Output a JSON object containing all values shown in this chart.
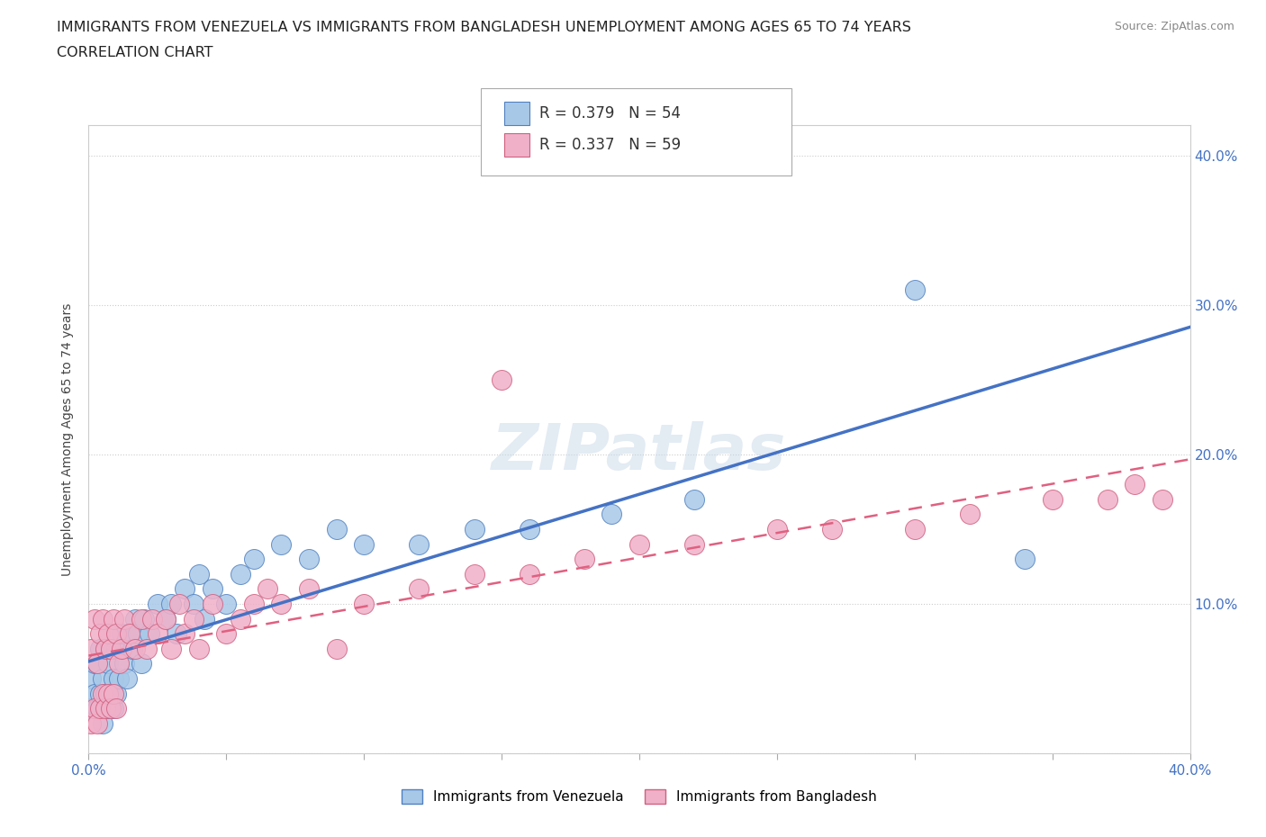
{
  "title_line1": "IMMIGRANTS FROM VENEZUELA VS IMMIGRANTS FROM BANGLADESH UNEMPLOYMENT AMONG AGES 65 TO 74 YEARS",
  "title_line2": "CORRELATION CHART",
  "source_text": "Source: ZipAtlas.com",
  "ylabel": "Unemployment Among Ages 65 to 74 years",
  "xlim": [
    0.0,
    0.4
  ],
  "ylim": [
    0.0,
    0.42
  ],
  "xticks": [
    0.0,
    0.05,
    0.1,
    0.15,
    0.2,
    0.25,
    0.3,
    0.35,
    0.4
  ],
  "yticks": [
    0.0,
    0.1,
    0.2,
    0.3,
    0.4
  ],
  "legend_r1": "R = 0.379",
  "legend_n1": "N = 54",
  "legend_r2": "R = 0.337",
  "legend_n2": "N = 59",
  "color_venezuela": "#a8c8e8",
  "color_bangladesh": "#f0b0c8",
  "color_edge_venezuela": "#5080c0",
  "color_edge_bangladesh": "#d06080",
  "color_line_venezuela": "#4472c4",
  "color_line_bangladesh": "#e06080",
  "watermark_text": "ZIPatlas",
  "background_color": "#ffffff",
  "venezuela_x": [
    0.001,
    0.001,
    0.002,
    0.002,
    0.003,
    0.003,
    0.004,
    0.004,
    0.005,
    0.005,
    0.006,
    0.006,
    0.007,
    0.007,
    0.008,
    0.008,
    0.009,
    0.009,
    0.01,
    0.01,
    0.011,
    0.012,
    0.013,
    0.014,
    0.015,
    0.016,
    0.017,
    0.018,
    0.019,
    0.02,
    0.022,
    0.025,
    0.028,
    0.03,
    0.032,
    0.035,
    0.038,
    0.04,
    0.042,
    0.045,
    0.05,
    0.055,
    0.06,
    0.07,
    0.08,
    0.09,
    0.1,
    0.12,
    0.14,
    0.16,
    0.19,
    0.22,
    0.3,
    0.34
  ],
  "venezuela_y": [
    0.03,
    0.05,
    0.04,
    0.06,
    0.03,
    0.06,
    0.04,
    0.07,
    0.02,
    0.05,
    0.04,
    0.07,
    0.03,
    0.06,
    0.04,
    0.07,
    0.03,
    0.05,
    0.04,
    0.07,
    0.05,
    0.08,
    0.06,
    0.05,
    0.08,
    0.07,
    0.09,
    0.08,
    0.06,
    0.09,
    0.08,
    0.1,
    0.09,
    0.1,
    0.08,
    0.11,
    0.1,
    0.12,
    0.09,
    0.11,
    0.1,
    0.12,
    0.13,
    0.14,
    0.13,
    0.15,
    0.14,
    0.14,
    0.15,
    0.15,
    0.16,
    0.17,
    0.31,
    0.13
  ],
  "bangladesh_x": [
    0.001,
    0.001,
    0.002,
    0.002,
    0.003,
    0.003,
    0.004,
    0.004,
    0.005,
    0.005,
    0.006,
    0.006,
    0.007,
    0.007,
    0.008,
    0.008,
    0.009,
    0.009,
    0.01,
    0.01,
    0.011,
    0.012,
    0.013,
    0.015,
    0.017,
    0.019,
    0.021,
    0.023,
    0.025,
    0.028,
    0.03,
    0.033,
    0.035,
    0.038,
    0.04,
    0.045,
    0.05,
    0.055,
    0.06,
    0.065,
    0.07,
    0.08,
    0.1,
    0.12,
    0.14,
    0.16,
    0.18,
    0.2,
    0.22,
    0.25,
    0.27,
    0.3,
    0.32,
    0.35,
    0.37,
    0.38,
    0.39,
    0.15,
    0.09
  ],
  "bangladesh_y": [
    0.02,
    0.07,
    0.03,
    0.09,
    0.02,
    0.06,
    0.03,
    0.08,
    0.04,
    0.09,
    0.03,
    0.07,
    0.04,
    0.08,
    0.03,
    0.07,
    0.04,
    0.09,
    0.03,
    0.08,
    0.06,
    0.07,
    0.09,
    0.08,
    0.07,
    0.09,
    0.07,
    0.09,
    0.08,
    0.09,
    0.07,
    0.1,
    0.08,
    0.09,
    0.07,
    0.1,
    0.08,
    0.09,
    0.1,
    0.11,
    0.1,
    0.11,
    0.1,
    0.11,
    0.12,
    0.12,
    0.13,
    0.14,
    0.14,
    0.15,
    0.15,
    0.15,
    0.16,
    0.17,
    0.17,
    0.18,
    0.17,
    0.25,
    0.07
  ]
}
